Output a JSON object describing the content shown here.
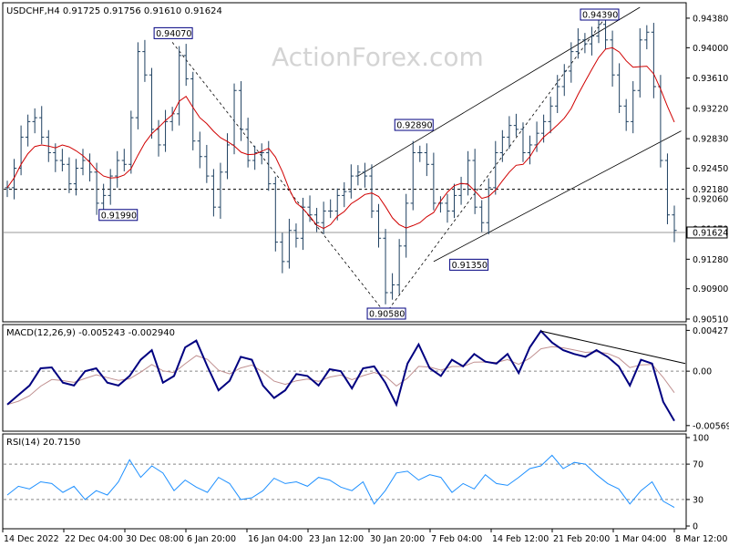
{
  "chart_data": [
    {
      "type": "line",
      "panel": "price",
      "header": "USDCHF,H4  0.91725 0.91756 0.91610 0.91624",
      "watermark": "ActionForex.com",
      "ylim": [
        0.9051,
        0.9452
      ],
      "y_ticks": [
        "0.94380",
        "0.94000",
        "0.93610",
        "0.93220",
        "0.92830",
        "0.92450",
        "0.92060",
        "0.91670",
        "0.91280",
        "0.90900",
        "0.90510"
      ],
      "x_ticks": [
        "14 Dec 2022",
        "22 Dec 04:00",
        "30 Dec 08:00",
        "6 Jan 20:00",
        "16 Jan 04:00",
        "23 Jan 12:00",
        "30 Jan 20:00",
        "7 Feb 04:00",
        "14 Feb 12:00",
        "21 Feb 20:00",
        "1 Mar 04:00",
        "8 Mar 12:00"
      ],
      "annotations": [
        {
          "label": "0.94070",
          "x": "30 Dec",
          "y": 0.9407
        },
        {
          "label": "0.91990",
          "x": "22 Dec",
          "y": 0.9199
        },
        {
          "label": "0.92890",
          "x": "7 Feb",
          "y": 0.9289
        },
        {
          "label": "0.90580",
          "x": "2 Feb",
          "y": 0.9058
        },
        {
          "label": "0.91350",
          "x": "14 Feb",
          "y": 0.9135
        },
        {
          "label": "0.94390",
          "x": "27 Feb",
          "y": 0.9439
        }
      ],
      "levels": [
        {
          "label": "0.92180",
          "y": 0.9218,
          "style": "dashed"
        },
        {
          "label": "0.91624",
          "y": 0.91624,
          "style": "current"
        }
      ],
      "series": [
        {
          "values": [
            0.922,
            0.9245,
            0.9285,
            0.9305,
            0.931,
            0.9285,
            0.9265,
            0.9255,
            0.925,
            0.9225,
            0.9245,
            0.9255,
            0.924,
            0.92,
            0.921,
            0.9235,
            0.9255,
            0.925,
            0.931,
            0.9395,
            0.9365,
            0.9295,
            0.9275,
            0.9305,
            0.9315,
            0.939,
            0.936,
            0.928,
            0.926,
            0.9235,
            0.9195,
            0.924,
            0.9275,
            0.9345,
            0.9295,
            0.9255,
            0.9265,
            0.9265,
            0.9225,
            0.915,
            0.9125,
            0.9165,
            0.9155,
            0.9195,
            0.9185,
            0.9175,
            0.919,
            0.919,
            0.921,
            0.9215,
            0.9235,
            0.924,
            0.9235,
            0.919,
            0.9155,
            0.9085,
            0.9095,
            0.9145,
            0.92,
            0.9265,
            0.9265,
            0.925,
            0.92,
            0.92,
            0.919,
            0.921,
            0.9225,
            0.9255,
            0.9195,
            0.9175,
            0.922,
            0.9265,
            0.9285,
            0.93,
            0.9295,
            0.9265,
            0.9275,
            0.929,
            0.9305,
            0.9325,
            0.935,
            0.937,
            0.9395,
            0.941,
            0.9405,
            0.9415,
            0.943,
            0.941,
            0.9365,
            0.9325,
            0.9305,
            0.9345,
            0.941,
            0.942,
            0.935,
            0.9255,
            0.9185,
            0.9165
          ]
        },
        {
          "name": "MA",
          "color": "#d00000"
        }
      ]
    },
    {
      "type": "line",
      "panel": "macd",
      "header": "MACD(12,26,9) -0.005243 -0.002940",
      "ylim": [
        -0.006,
        0.0045
      ],
      "y_ticks": [
        "0.004273",
        "0.00",
        "-0.005696"
      ],
      "values": [
        -0.0035,
        -0.0025,
        -0.0015,
        0.0003,
        0.0004,
        -0.0012,
        -0.0015,
        0.0,
        0.0003,
        -0.0012,
        -0.0015,
        -0.0005,
        0.0012,
        0.0022,
        -0.0012,
        -0.0005,
        0.0025,
        0.0032,
        0.0005,
        -0.002,
        -0.001,
        0.0015,
        0.0012,
        -0.0015,
        -0.0028,
        -0.002,
        -0.0003,
        -0.0005,
        -0.0015,
        0.0002,
        0.0,
        -0.0018,
        0.0003,
        0.0005,
        -0.0012,
        -0.0035,
        0.0008,
        0.0028,
        0.0003,
        -0.0005,
        0.0012,
        0.0005,
        0.0018,
        0.001,
        0.0008,
        0.0018,
        -0.0002,
        0.0025,
        0.0042,
        0.003,
        0.0022,
        0.0018,
        0.0015,
        0.0022,
        0.0015,
        0.0005,
        -0.0015,
        0.0012,
        0.0008,
        -0.0032,
        -0.0052
      ],
      "trendline": {
        "from": 0.0042,
        "to": 0.0008
      }
    },
    {
      "type": "line",
      "panel": "rsi",
      "header": "RSI(14) 20.7150",
      "ylim": [
        0,
        100
      ],
      "y_ticks": [
        "100",
        "70",
        "30",
        "0"
      ],
      "levels": [
        70,
        30
      ],
      "values": [
        35,
        45,
        42,
        50,
        48,
        38,
        45,
        30,
        40,
        35,
        50,
        75,
        55,
        68,
        60,
        40,
        52,
        44,
        38,
        55,
        48,
        30,
        32,
        40,
        54,
        48,
        50,
        45,
        55,
        52,
        44,
        40,
        50,
        25,
        40,
        60,
        62,
        52,
        58,
        55,
        38,
        48,
        42,
        58,
        48,
        46,
        55,
        65,
        68,
        80,
        65,
        72,
        70,
        58,
        48,
        42,
        25,
        40,
        50,
        28,
        21
      ]
    }
  ]
}
